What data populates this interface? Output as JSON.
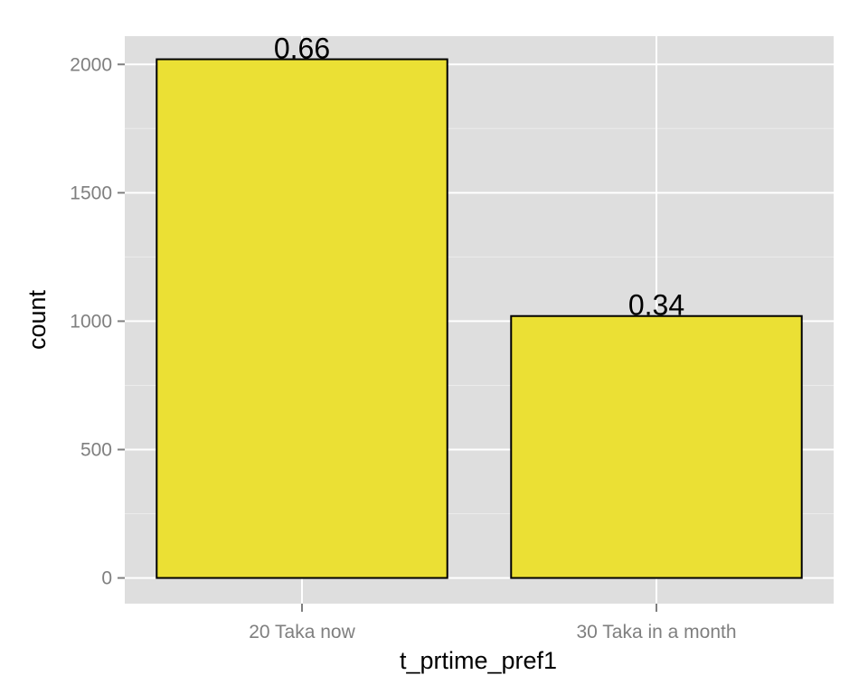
{
  "chart_data": {
    "type": "bar",
    "title": "",
    "xlabel": "t_prtime_pref1",
    "ylabel": "count",
    "categories": [
      "20 Taka now",
      "30 Taka in a month"
    ],
    "values": [
      2020,
      1020
    ],
    "data_labels": [
      "0.66",
      "0.34"
    ],
    "ylim": [
      -100,
      2110
    ],
    "yticks": [
      0,
      500,
      1000,
      1500,
      2000
    ],
    "ytick_labels": [
      "0",
      "500",
      "1000",
      "1500",
      "2000"
    ],
    "grid": true,
    "legend": "none",
    "colors": {
      "bar_fill": "#ebe034",
      "bar_stroke": "#000000",
      "panel_bg": "#dedede",
      "grid_major": "#ffffff",
      "grid_minor": "#ececec",
      "tick_text": "#7f7f7f"
    }
  }
}
